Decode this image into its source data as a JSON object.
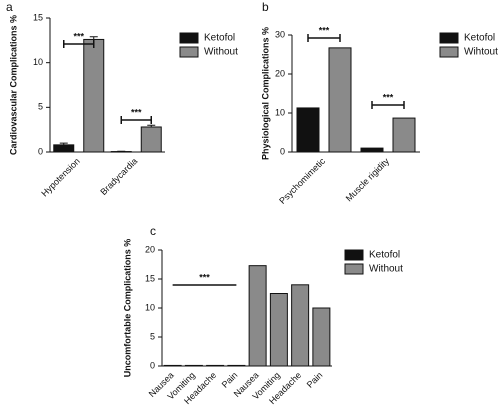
{
  "chart_data": [
    {
      "type": "bar",
      "label": "a",
      "y_label": "Cardiovascular Complications %",
      "categories": [
        "Hypotension",
        "Bradycardia"
      ],
      "series": [
        {
          "name": "Ketofol",
          "color": "#111111",
          "values": [
            0.8,
            0.05
          ],
          "errors": [
            0.2,
            0.03
          ]
        },
        {
          "name": "Without",
          "color": "#8a8a8a",
          "values": [
            12.6,
            2.8
          ],
          "errors": [
            0.3,
            0.2
          ]
        }
      ],
      "ylim": [
        0,
        15
      ],
      "yticks": [
        0,
        5,
        10,
        15
      ],
      "annotations": [
        {
          "text": "***"
        },
        {
          "text": "***"
        }
      ]
    },
    {
      "type": "bar",
      "label": "b",
      "y_label": "Physiological Complications %",
      "categories": [
        "Psychomimetic",
        "Muscle rigidity"
      ],
      "series": [
        {
          "name": "Ketofol",
          "color": "#111111",
          "values": [
            11.3,
            1
          ]
        },
        {
          "name": "Wihtout",
          "color": "#8a8a8a",
          "values": [
            26.7,
            8.7
          ]
        }
      ],
      "ylim": [
        0,
        30
      ],
      "yticks": [
        0,
        10,
        20,
        30
      ],
      "annotations": [
        {
          "text": "***"
        },
        {
          "text": "***"
        }
      ]
    },
    {
      "type": "bar",
      "label": "c",
      "y_label": "Uncomfortable Complications %",
      "categories": [
        "Nausea",
        "Vomiting",
        "Headache",
        "Pain",
        "Nausea",
        "Vomiting",
        "Headache",
        "Pain"
      ],
      "series": [
        {
          "name": "Ketofol",
          "color": "#111111",
          "values": [
            0.1,
            0.1,
            0.1,
            0.1,
            null,
            null,
            null,
            null
          ]
        },
        {
          "name": "Without",
          "color": "#8a8a8a",
          "values": [
            null,
            null,
            null,
            null,
            17.3,
            12.5,
            14,
            10
          ]
        }
      ],
      "ylim": [
        0,
        20
      ],
      "yticks": [
        0,
        5,
        10,
        15,
        20
      ],
      "annotations": [
        {
          "text": "***"
        }
      ]
    }
  ]
}
